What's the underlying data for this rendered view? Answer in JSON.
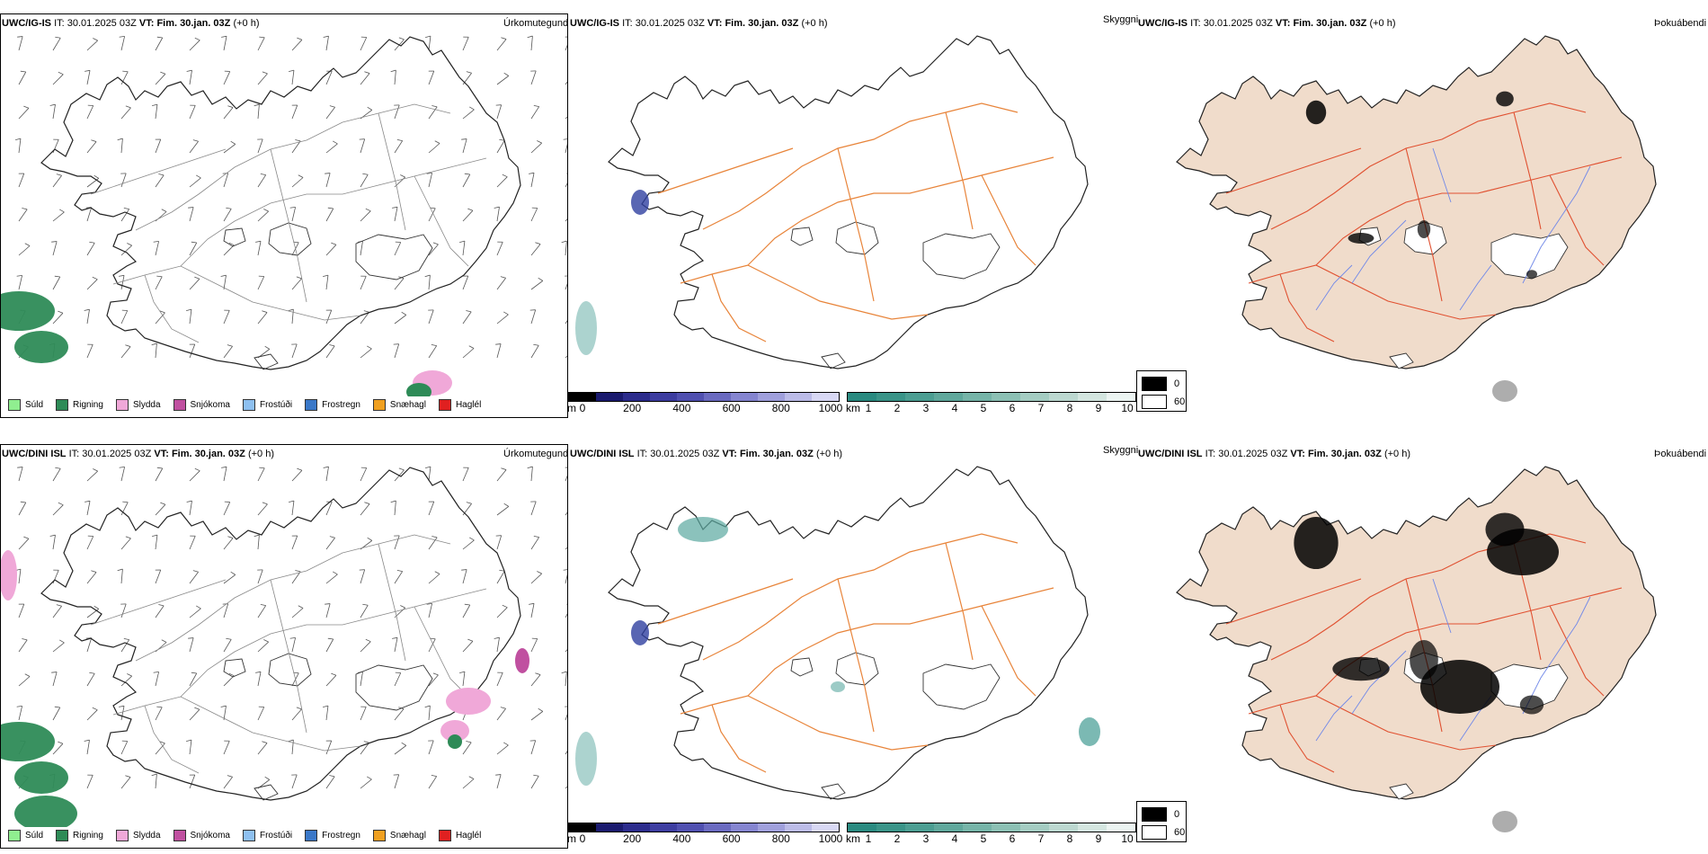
{
  "precip_legend": [
    {
      "label": "Súld",
      "color": "#90ee90"
    },
    {
      "label": "Rigning",
      "color": "#2e8b57"
    },
    {
      "label": "Slydda",
      "color": "#f0a8d8"
    },
    {
      "label": "Snjókoma",
      "color": "#c050a0"
    },
    {
      "label": "Frostúði",
      "color": "#8ec0f0"
    },
    {
      "label": "Frostregn",
      "color": "#3a78c8"
    },
    {
      "label": "Snæhagl",
      "color": "#f0a020"
    },
    {
      "label": "Haglél",
      "color": "#e02020"
    }
  ],
  "colors": {
    "land_fill": "#f0dccb",
    "roads": "#e8843a",
    "red_roads": "#e05030",
    "rivers": "#7088e8",
    "rain_green": "#2e8b57",
    "visibility_teal": "#5aa8a0"
  },
  "rows": [
    {
      "model": "UWC/IG-IS",
      "it_label": "IT:",
      "it_value": "30.01.2025 03Z",
      "vt_label": "VT:",
      "vt_value": "Fim. 30.jan. 03Z",
      "lead": "(+0 h)",
      "titles": {
        "precip": "Úrkomutegund",
        "vis": "Skyggni",
        "fog": "Þokuábendi"
      }
    },
    {
      "model": "UWC/DINI ISL",
      "it_label": "IT:",
      "it_value": "30.01.2025 03Z",
      "vt_label": "VT:",
      "vt_value": "Fim. 30.jan. 03Z",
      "lead": "(+0 h)",
      "titles": {
        "precip": "Úrkomutegund",
        "vis": "Skyggni",
        "fog": "Þokuábendi"
      }
    }
  ],
  "elev_bar": {
    "unit": "m",
    "ticks": [
      "0",
      "200",
      "400",
      "600",
      "800",
      "1000"
    ],
    "colors": [
      "#000000",
      "#1a1a6e",
      "#2c2c8c",
      "#3d3da0",
      "#5050b0",
      "#6a6ac0",
      "#8585d0",
      "#a0a0dc",
      "#bcbce8",
      "#d8d8f4"
    ]
  },
  "vis_bar": {
    "unit": "km",
    "ticks": [
      "1",
      "2",
      "3",
      "4",
      "5",
      "6",
      "7",
      "8",
      "9",
      "10"
    ],
    "colors": [
      "#2a8a80",
      "#3a9488",
      "#4c9e92",
      "#60a89c",
      "#76b4a8",
      "#8cc0b4",
      "#a4ccc2",
      "#bcd8d0",
      "#d4e6e0",
      "#ecf4f2"
    ]
  },
  "fog_legend": [
    {
      "label": "0",
      "color": "#000000"
    },
    {
      "label": "60",
      "color": "#ffffff"
    }
  ]
}
